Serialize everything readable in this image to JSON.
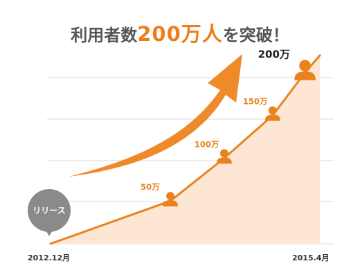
{
  "headline": {
    "prefix": "利用者数",
    "number": "200万人",
    "suffix": "を突破！"
  },
  "callout": "リリース",
  "colors": {
    "line": "#e8831e",
    "area": "#fde6d3",
    "arrow": "#ef8a2a",
    "marker": "#e8831e",
    "grid": "#d9d9d9",
    "bubble": "#8a8a8a"
  },
  "chart_data": {
    "type": "area",
    "xlabel": "",
    "ylabel": "",
    "ylim": [
      0,
      220
    ],
    "x_tick_labels": [
      "2012.12月",
      "2015.4月"
    ],
    "points": [
      {
        "x": 0.0,
        "y": 0
      },
      {
        "x": 0.445,
        "y": 50,
        "label": "50万"
      },
      {
        "x": 0.645,
        "y": 100,
        "label": "100万"
      },
      {
        "x": 0.825,
        "y": 150,
        "label": "150万"
      },
      {
        "x": 0.945,
        "y": 200,
        "label": "200万"
      },
      {
        "x": 1.0,
        "y": 220
      }
    ],
    "grid": true,
    "legend": "none"
  }
}
